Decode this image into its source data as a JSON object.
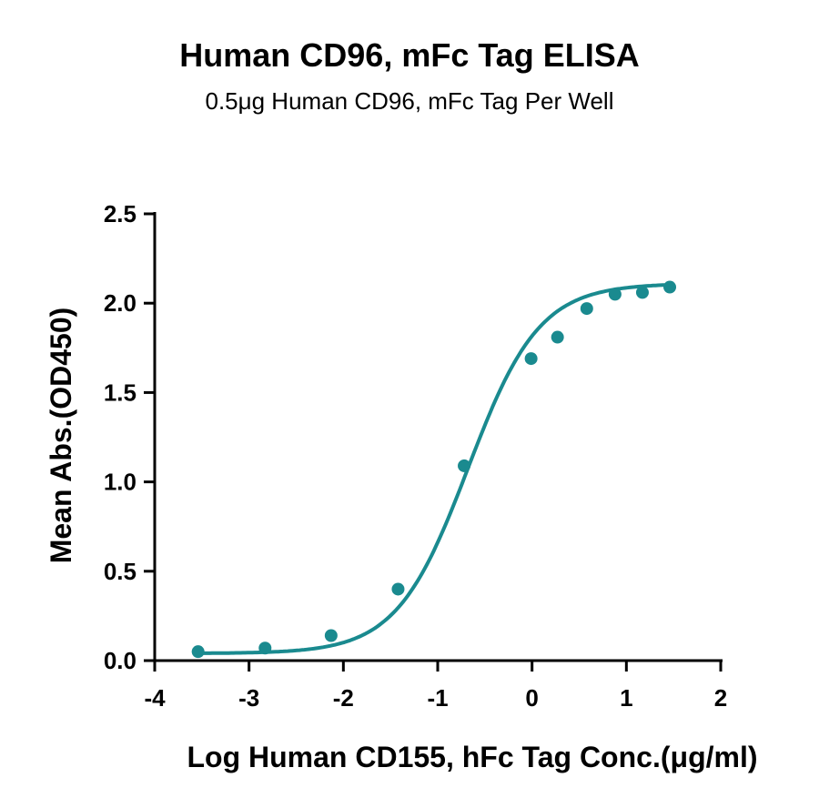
{
  "chart_data": {
    "type": "scatter",
    "title": "Human CD96, mFc Tag ELISA",
    "subtitle": "0.5μg Human CD96, mFc Tag Per Well",
    "xlabel": "Log Human CD155, hFc Tag Conc.(μg/ml)",
    "ylabel": "Mean Abs.(OD450)",
    "xlim": [
      -4,
      2
    ],
    "ylim": [
      0,
      2.5
    ],
    "x_ticks": [
      "-4",
      "-3",
      "-2",
      "-1",
      "0",
      "1",
      "2"
    ],
    "y_ticks": [
      "0.0",
      "0.5",
      "1.0",
      "1.5",
      "2.0",
      "2.5"
    ],
    "grid": false,
    "color": "#1a8a8f",
    "series": [
      {
        "points": [
          {
            "x": -3.54,
            "y": 0.05
          },
          {
            "x": -2.83,
            "y": 0.07
          },
          {
            "x": -2.13,
            "y": 0.14
          },
          {
            "x": -1.42,
            "y": 0.4
          },
          {
            "x": -0.72,
            "y": 1.09
          },
          {
            "x": -0.01,
            "y": 1.69
          },
          {
            "x": 0.27,
            "y": 1.81
          },
          {
            "x": 0.58,
            "y": 1.97
          },
          {
            "x": 0.88,
            "y": 2.05
          },
          {
            "x": 1.17,
            "y": 2.06
          },
          {
            "x": 1.46,
            "y": 2.09
          }
        ],
        "fit_curve": {
          "model": "4PL",
          "bottom": 0.04,
          "top": 2.11,
          "log_ec50": -0.68,
          "hill_slope": 1.15,
          "x_range": [
            -3.54,
            1.46
          ]
        }
      }
    ]
  }
}
